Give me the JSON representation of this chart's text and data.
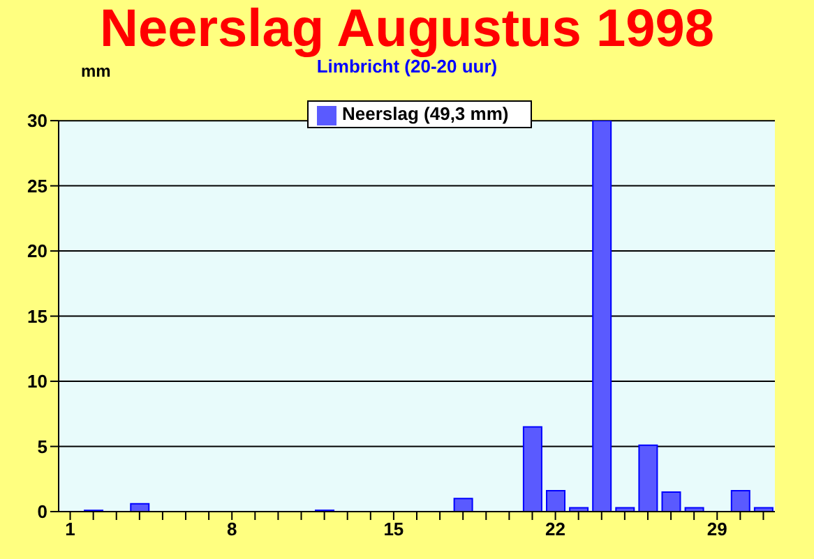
{
  "chart_data": {
    "type": "bar",
    "title": "Neerslag Augustus 1998",
    "subtitle": "Limbricht (20-20 uur)",
    "ylabel": "mm",
    "categories": [
      "1",
      null,
      null,
      null,
      null,
      null,
      null,
      "8",
      null,
      null,
      null,
      null,
      null,
      null,
      "15",
      null,
      null,
      null,
      null,
      null,
      null,
      "22",
      null,
      null,
      null,
      null,
      null,
      null,
      "29",
      null,
      null
    ],
    "series": [
      {
        "name": "Neerslag (49,3 mm)",
        "color": "#5a5aff",
        "values": [
          null,
          0.1,
          null,
          0.6,
          null,
          null,
          null,
          null,
          null,
          null,
          null,
          0.1,
          null,
          null,
          null,
          null,
          null,
          1.0,
          null,
          null,
          6.5,
          1.6,
          0.3,
          30.0,
          0.3,
          5.1,
          1.5,
          0.3,
          null,
          1.6,
          0.3
        ]
      }
    ],
    "ylim": [
      0,
      30
    ],
    "yticks": [
      0,
      5,
      10,
      15,
      20,
      25,
      30
    ],
    "grid": "y",
    "legend": "top"
  }
}
